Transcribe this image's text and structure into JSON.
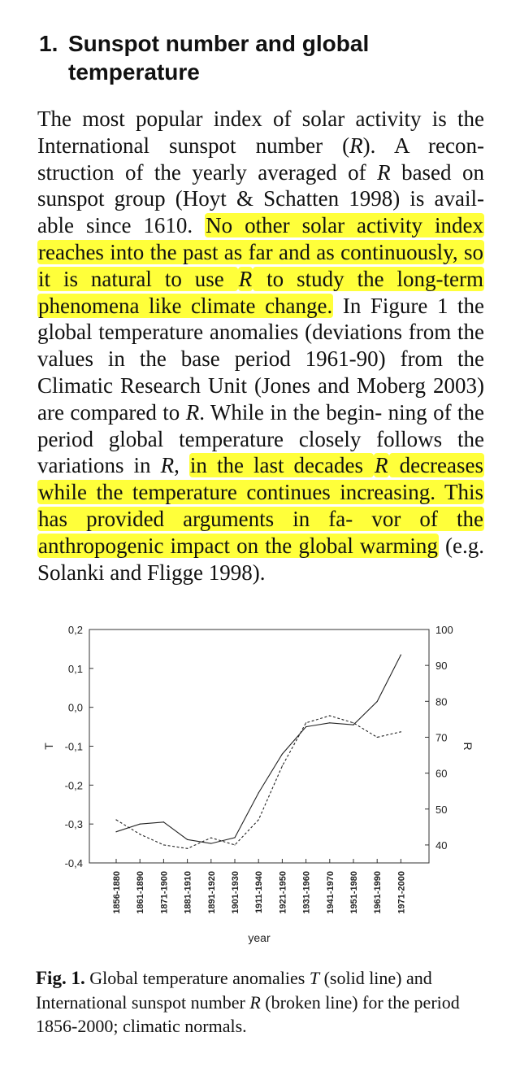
{
  "heading": {
    "number": "1.",
    "line1": "Sunspot number and global",
    "line2": "temperature"
  },
  "paragraph": {
    "runs": [
      {
        "t": "The most popular index of solar activity is the International sunspot number ("
      },
      {
        "t": "R",
        "i": true
      },
      {
        "t": "). A recon- struction of the yearly averaged of "
      },
      {
        "t": "R",
        "i": true
      },
      {
        "t": " based on sunspot group (Hoyt & Schatten 1998) is avail- able since 1610. "
      },
      {
        "t": "No other solar activity index reaches into the past as far and as continuously, so it is natural to use ",
        "h": true
      },
      {
        "t": "R",
        "i": true,
        "h": true
      },
      {
        "t": " to study the long-term phenomena like climate change.",
        "h": true
      },
      {
        "t": " In Figure 1 the global temperature anomalies (deviations from the values in the base period 1961-90) from the Climatic Research Unit (Jones and Moberg 2003) are compared to "
      },
      {
        "t": "R",
        "i": true
      },
      {
        "t": ". While in the begin- ning of the period global temperature closely follows the variations in "
      },
      {
        "t": "R",
        "i": true
      },
      {
        "t": ", "
      },
      {
        "t": "in the last decades ",
        "h": true
      },
      {
        "t": "R",
        "i": true,
        "h": true
      },
      {
        "t": " decreases while the temperature continues increasing. This has provided arguments in fa- vor of the anthropogenic impact on the global warming",
        "h": true
      },
      {
        "t": " (e.g. Solanki and Fligge 1998)."
      }
    ]
  },
  "highlight_color": "#ffff3a",
  "chart_data": {
    "type": "line",
    "categories": [
      "1856-1880",
      "1861-1890",
      "1871-1900",
      "1881-1910",
      "1891-1920",
      "1901-1930",
      "1911-1940",
      "1921-1950",
      "1931-1960",
      "1941-1970",
      "1951-1980",
      "1961-1990",
      "1971-2000"
    ],
    "series": [
      {
        "name": "T",
        "style": "solid",
        "axis": "left",
        "values": [
          -0.32,
          -0.3,
          -0.295,
          -0.34,
          -0.35,
          -0.335,
          -0.22,
          -0.12,
          -0.05,
          -0.04,
          -0.045,
          0.015,
          0.135
        ]
      },
      {
        "name": "R",
        "style": "dashed",
        "axis": "right",
        "values": [
          47,
          43,
          40,
          39,
          42,
          40,
          47,
          62,
          74,
          76,
          74,
          70,
          71.5
        ]
      }
    ],
    "xlabel": "year",
    "ylabel_left": "T",
    "ylabel_right": "R",
    "ylim_left": [
      -0.4,
      0.2
    ],
    "ylim_right": [
      35,
      100
    ],
    "yticks_left": [
      "0,2",
      "0,1",
      "0,0",
      "-0,1",
      "-0,2",
      "-0,3",
      "-0,4"
    ],
    "yticks_right": [
      "100",
      "90",
      "80",
      "70",
      "60",
      "50",
      "40"
    ],
    "yticks_left_values": [
      0.2,
      0.1,
      0.0,
      -0.1,
      -0.2,
      -0.3,
      -0.4
    ],
    "yticks_right_values": [
      100,
      90,
      80,
      70,
      60,
      50,
      40
    ],
    "grid": false,
    "legend": "none"
  },
  "caption": {
    "label": "Fig. 1.",
    "text_runs": [
      {
        "t": " Global temperature anomalies "
      },
      {
        "t": "T",
        "i": true
      },
      {
        "t": " (solid line) and International sunspot number "
      },
      {
        "t": "R",
        "i": true
      },
      {
        "t": " (broken line) for the period 1856-2000; climatic normals."
      }
    ]
  }
}
